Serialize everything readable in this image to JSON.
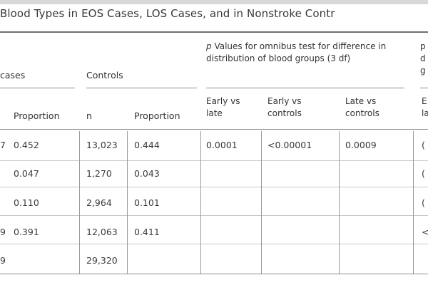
{
  "table": {
    "title": "Blood Types in EOS Cases, LOS Cases, and in Nonstroke Contr",
    "groups": {
      "cases_label": "cases",
      "controls_label": "Controls",
      "pvalue_label": "p Values for omnibus test for difference in distribution of blood groups (3 df)",
      "next_group_fragment": "p\nd\ng"
    },
    "subheaders": {
      "proportion_cases": "Proportion",
      "n_controls": "n",
      "proportion_controls": "Proportion",
      "early_vs_late": "Early vs late",
      "early_vs_controls": "Early vs controls",
      "late_vs_controls": "Late vs controls",
      "next_fragment": "E\nla"
    },
    "rows": [
      {
        "n_frag": "7",
        "prop": "0.452",
        "ctrl_n": "13,023",
        "ctrl_prop": "0.444",
        "p_el": "0.0001",
        "p_ec": "<0.00001",
        "p_lc": "0.0009",
        "edge": "("
      },
      {
        "n_frag": "",
        "prop": "0.047",
        "ctrl_n": "1,270",
        "ctrl_prop": "0.043",
        "p_el": "",
        "p_ec": "",
        "p_lc": "",
        "edge": "("
      },
      {
        "n_frag": "",
        "prop": "0.110",
        "ctrl_n": "2,964",
        "ctrl_prop": "0.101",
        "p_el": "",
        "p_ec": "",
        "p_lc": "",
        "edge": "("
      },
      {
        "n_frag": "9",
        "prop": "0.391",
        "ctrl_n": "12,063",
        "ctrl_prop": "0.411",
        "p_el": "",
        "p_ec": "",
        "p_lc": "",
        "edge": "<"
      },
      {
        "n_frag": "9",
        "prop": "",
        "ctrl_n": "29,320",
        "ctrl_prop": "",
        "p_el": "",
        "p_ec": "",
        "p_lc": "",
        "edge": ""
      }
    ]
  }
}
